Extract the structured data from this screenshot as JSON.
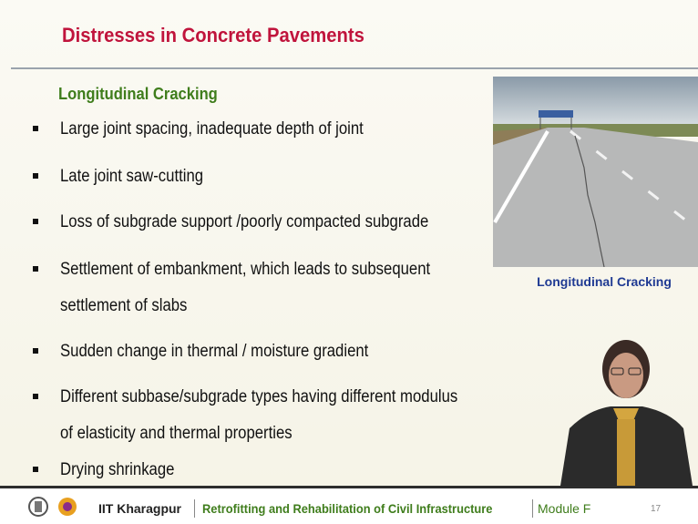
{
  "header": {
    "title": "Distresses in Concrete Pavements"
  },
  "section": {
    "heading": "Longitudinal Cracking",
    "bullets": [
      [
        "Large joint spacing, inadequate depth of joint"
      ],
      [
        "Late joint saw-cutting"
      ],
      [
        "Loss of subgrade support /poorly compacted subgrade"
      ],
      [
        "Settlement of embankment, which leads to subsequent",
        "settlement of slabs"
      ],
      [
        "Sudden change in thermal / moisture gradient"
      ],
      [
        "Different subbase/subgrade types having different modulus",
        "of elasticity and thermal properties"
      ],
      [
        "Drying shrinkage"
      ]
    ]
  },
  "figure": {
    "caption": "Longitudinal Cracking"
  },
  "footer": {
    "institute": "IIT Kharagpur",
    "course": "Retrofitting and Rehabilitation of Civil Infrastructure",
    "module": "Module F",
    "page": "17"
  }
}
